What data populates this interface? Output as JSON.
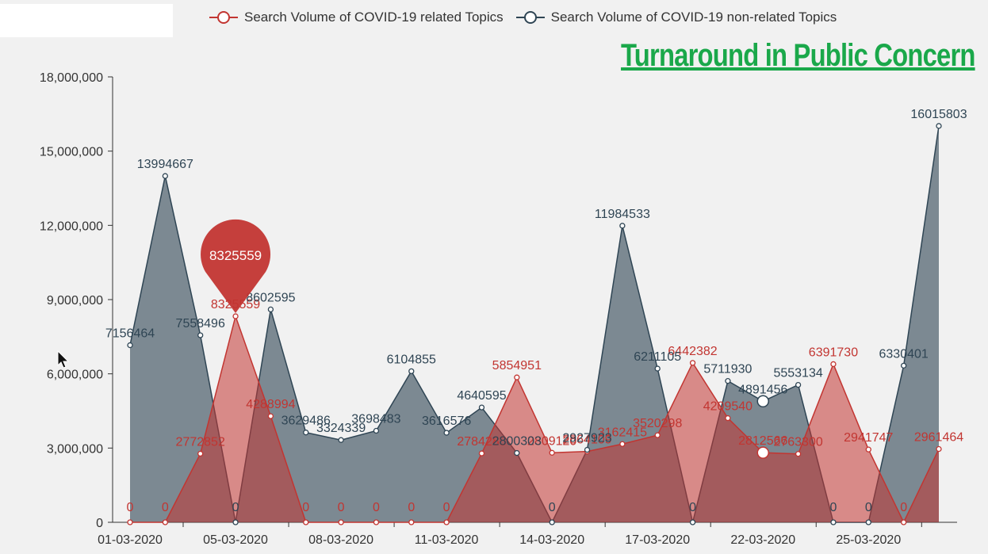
{
  "headline": "Turnaround in Public Concern",
  "legend": {
    "related_label": "Search Volume of COVID-19 related Topics",
    "nonrelated_label": "Search Volume of COVID-19 non-related Topics"
  },
  "colors": {
    "related": "#c23531",
    "nonrelated": "#2f4554",
    "headline": "#1aa84a"
  },
  "tooltip_pin": {
    "value": "8325559",
    "index": 3
  },
  "chart_data": {
    "type": "area",
    "x_tick_labels": [
      "01-03-2020",
      "05-03-2020",
      "08-03-2020",
      "11-03-2020",
      "14-03-2020",
      "17-03-2020",
      "22-03-2020",
      "25-03-2020"
    ],
    "ylim": [
      0,
      18000000
    ],
    "y_ticks": [
      0,
      3000000,
      6000000,
      9000000,
      12000000,
      15000000,
      18000000
    ],
    "y_tick_labels": [
      "0",
      "3,000,000",
      "6,000,000",
      "9,000,000",
      "12,000,000",
      "15,000,000",
      "18,000,000"
    ],
    "series": [
      {
        "name": "Search Volume of COVID-19 related Topics",
        "values": [
          0,
          0,
          2772852,
          8325559,
          4288994,
          0,
          0,
          0,
          0,
          0,
          2784285,
          5854951,
          2809120,
          2864109,
          3162415,
          3520298,
          6442382,
          4209540,
          2812566,
          2763300,
          6391730,
          2941747,
          0,
          2961464
        ]
      },
      {
        "name": "Search Volume of COVID-19 non-related Topics",
        "values": [
          7156464,
          13994667,
          7558496,
          0,
          8602595,
          3629486,
          3324339,
          3698483,
          6104855,
          3616576,
          4640595,
          2800303,
          0,
          2927923,
          11984533,
          6211105,
          0,
          5711930,
          4891456,
          5553134,
          0,
          0,
          6330401,
          16015803
        ]
      }
    ]
  }
}
